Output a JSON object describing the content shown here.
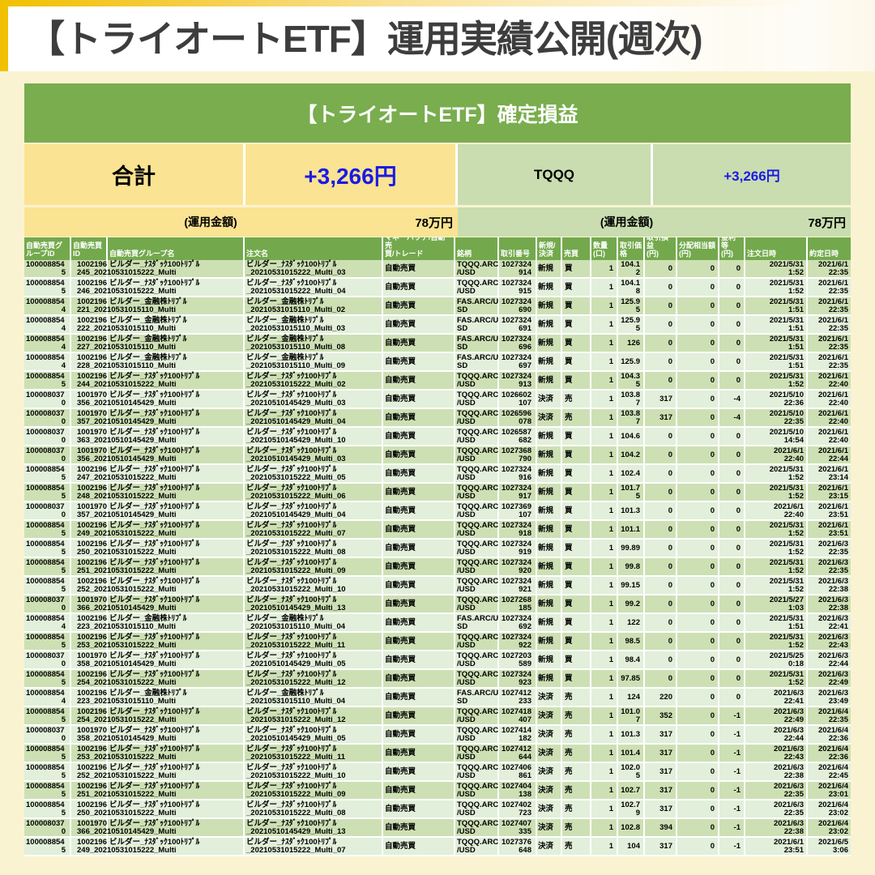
{
  "title": "【トライオートETF】運用実績公開(週次)",
  "panel": {
    "heading": "【トライオートETF】確定損益",
    "summary": {
      "total_label": "合計",
      "total_value": "+3,266円",
      "symbol": "TQQQ",
      "symbol_value": "+3,266円"
    },
    "funds": {
      "label_left": "(運用金額)",
      "value_left": "78万円",
      "label_right": "(運用金額)",
      "value_right": "78万円"
    }
  },
  "colors": {
    "page_cream": "#faf3d2",
    "gold": "#f2c002",
    "title_text": "#3d3d3d",
    "heading_green": "#79ad4e",
    "header_green": "#73a94c",
    "row_dark": "#cde0b4",
    "row_light": "#e2efda",
    "summary_yellow": "#fae392",
    "summary_green": "#c9ddb0",
    "profit_blue": "#1a1ae6"
  },
  "table": {
    "headers": [
      "自動売買グ\nループID",
      "自動売買\nID",
      "自動売買グループ名",
      "注文名",
      "マネーハッチ/自動売\n買/トレード",
      "銘柄",
      "取引番号",
      "新規/\n決済",
      "売買",
      "数量\n(口)",
      "取引価\n格",
      "取引損益\n(円)",
      "分配相当額\n(円)",
      "金利等\n(円)",
      "注文日時",
      "約定日時"
    ],
    "rows": [
      [
        "100008854",
        "5",
        "1002196",
        "245_20210531015222_Multi",
        "ビルダー_ﾅｽﾀﾞｯｸ100ﾄﾘﾌﾟﾙ",
        "ビルダー_ﾅｽﾀﾞｯｸ100ﾄﾘﾌﾟﾙ",
        "_20210531015222_Multi_03",
        "自動売買",
        "TQQQ.ARC",
        "/USD",
        "1027324",
        "914",
        "新規",
        "買",
        "1",
        "104.1",
        "2",
        "0",
        "0",
        "0",
        "2021/5/31",
        "1:52",
        "2021/6/1",
        "22:35"
      ],
      [
        "100008854",
        "5",
        "1002196",
        "246_20210531015222_Multi",
        "ビルダー_ﾅｽﾀﾞｯｸ100ﾄﾘﾌﾟﾙ",
        "ビルダー_ﾅｽﾀﾞｯｸ100ﾄﾘﾌﾟﾙ",
        "_20210531015222_Multi_04",
        "自動売買",
        "TQQQ.ARC",
        "/USD",
        "1027324",
        "915",
        "新規",
        "買",
        "1",
        "104.1",
        "8",
        "0",
        "0",
        "0",
        "2021/5/31",
        "1:52",
        "2021/6/1",
        "22:35"
      ],
      [
        "100008854",
        "4",
        "1002196",
        "221_20210531015110_Multi",
        "ビルダー_金融株ﾄﾘﾌﾟﾙ",
        "ビルダー_金融株ﾄﾘﾌﾟﾙ",
        "_20210531015110_Multi_02",
        "自動売買",
        "FAS.ARC/U",
        "SD",
        "1027324",
        "690",
        "新規",
        "買",
        "1",
        "125.9",
        "5",
        "0",
        "0",
        "0",
        "2021/5/31",
        "1:51",
        "2021/6/1",
        "22:35"
      ],
      [
        "100008854",
        "4",
        "1002196",
        "222_20210531015110_Multi",
        "ビルダー_金融株ﾄﾘﾌﾟﾙ",
        "ビルダー_金融株ﾄﾘﾌﾟﾙ",
        "_20210531015110_Multi_03",
        "自動売買",
        "FAS.ARC/U",
        "SD",
        "1027324",
        "691",
        "新規",
        "買",
        "1",
        "125.9",
        "5",
        "0",
        "0",
        "0",
        "2021/5/31",
        "1:51",
        "2021/6/1",
        "22:35"
      ],
      [
        "100008854",
        "4",
        "1002196",
        "227_20210531015110_Multi",
        "ビルダー_金融株ﾄﾘﾌﾟﾙ",
        "ビルダー_金融株ﾄﾘﾌﾟﾙ",
        "_20210531015110_Multi_08",
        "自動売買",
        "FAS.ARC/U",
        "SD",
        "1027324",
        "696",
        "新規",
        "買",
        "1",
        "126",
        "",
        "0",
        "0",
        "0",
        "2021/5/31",
        "1:51",
        "2021/6/1",
        "22:35"
      ],
      [
        "100008854",
        "4",
        "1002196",
        "228_20210531015110_Multi",
        "ビルダー_金融株ﾄﾘﾌﾟﾙ",
        "ビルダー_金融株ﾄﾘﾌﾟﾙ",
        "_20210531015110_Multi_09",
        "自動売買",
        "FAS.ARC/U",
        "SD",
        "1027324",
        "697",
        "新規",
        "買",
        "1",
        "125.9",
        "",
        "0",
        "0",
        "0",
        "2021/5/31",
        "1:51",
        "2021/6/1",
        "22:35"
      ],
      [
        "100008854",
        "5",
        "1002196",
        "244_20210531015222_Multi",
        "ビルダー_ﾅｽﾀﾞｯｸ100ﾄﾘﾌﾟﾙ",
        "ビルダー_ﾅｽﾀﾞｯｸ100ﾄﾘﾌﾟﾙ",
        "_20210531015222_Multi_02",
        "自動売買",
        "TQQQ.ARC",
        "/USD",
        "1027324",
        "913",
        "新規",
        "買",
        "1",
        "104.3",
        "5",
        "0",
        "0",
        "0",
        "2021/5/31",
        "1:52",
        "2021/6/1",
        "22:40"
      ],
      [
        "100008037",
        "0",
        "1001970",
        "356_20210510145429_Multi",
        "ビルダー_ﾅｽﾀﾞｯｸ100ﾄﾘﾌﾟﾙ",
        "ビルダー_ﾅｽﾀﾞｯｸ100ﾄﾘﾌﾟﾙ",
        "_20210510145429_Multi_03",
        "自動売買",
        "TQQQ.ARC",
        "/USD",
        "1026602",
        "107",
        "決済",
        "売",
        "1",
        "103.8",
        "7",
        "317",
        "0",
        "-4",
        "2021/5/10",
        "22:36",
        "2021/6/1",
        "22:40"
      ],
      [
        "100008037",
        "0",
        "1001970",
        "357_20210510145429_Multi",
        "ビルダー_ﾅｽﾀﾞｯｸ100ﾄﾘﾌﾟﾙ",
        "ビルダー_ﾅｽﾀﾞｯｸ100ﾄﾘﾌﾟﾙ",
        "_20210510145429_Multi_04",
        "自動売買",
        "TQQQ.ARC",
        "/USD",
        "1026596",
        "078",
        "決済",
        "売",
        "1",
        "103.8",
        "7",
        "317",
        "0",
        "-4",
        "2021/5/10",
        "22:35",
        "2021/6/1",
        "22:40"
      ],
      [
        "100008037",
        "0",
        "1001970",
        "363_20210510145429_Multi",
        "ビルダー_ﾅｽﾀﾞｯｸ100ﾄﾘﾌﾟﾙ",
        "ビルダー_ﾅｽﾀﾞｯｸ100ﾄﾘﾌﾟﾙ",
        "_20210510145429_Multi_10",
        "自動売買",
        "TQQQ.ARC",
        "/USD",
        "1026587",
        "682",
        "新規",
        "買",
        "1",
        "104.6",
        "",
        "0",
        "0",
        "0",
        "2021/5/10",
        "14:54",
        "2021/6/1",
        "22:40"
      ],
      [
        "100008037",
        "0",
        "1001970",
        "356_20210510145429_Multi",
        "ビルダー_ﾅｽﾀﾞｯｸ100ﾄﾘﾌﾟﾙ",
        "ビルダー_ﾅｽﾀﾞｯｸ100ﾄﾘﾌﾟﾙ",
        "_20210510145429_Multi_03",
        "自動売買",
        "TQQQ.ARC",
        "/USD",
        "1027368",
        "790",
        "新規",
        "買",
        "1",
        "104.2",
        "",
        "0",
        "0",
        "0",
        "2021/6/1",
        "22:40",
        "2021/6/1",
        "22:44"
      ],
      [
        "100008854",
        "5",
        "1002196",
        "247_20210531015222_Multi",
        "ビルダー_ﾅｽﾀﾞｯｸ100ﾄﾘﾌﾟﾙ",
        "ビルダー_ﾅｽﾀﾞｯｸ100ﾄﾘﾌﾟﾙ",
        "_20210531015222_Multi_05",
        "自動売買",
        "TQQQ.ARC",
        "/USD",
        "1027324",
        "916",
        "新規",
        "買",
        "1",
        "102.4",
        "",
        "0",
        "0",
        "0",
        "2021/5/31",
        "1:52",
        "2021/6/1",
        "23:14"
      ],
      [
        "100008854",
        "5",
        "1002196",
        "248_20210531015222_Multi",
        "ビルダー_ﾅｽﾀﾞｯｸ100ﾄﾘﾌﾟﾙ",
        "ビルダー_ﾅｽﾀﾞｯｸ100ﾄﾘﾌﾟﾙ",
        "_20210531015222_Multi_06",
        "自動売買",
        "TQQQ.ARC",
        "/USD",
        "1027324",
        "917",
        "新規",
        "買",
        "1",
        "101.7",
        "5",
        "0",
        "0",
        "0",
        "2021/5/31",
        "1:52",
        "2021/6/1",
        "23:15"
      ],
      [
        "100008037",
        "0",
        "1001970",
        "357_20210510145429_Multi",
        "ビルダー_ﾅｽﾀﾞｯｸ100ﾄﾘﾌﾟﾙ",
        "ビルダー_ﾅｽﾀﾞｯｸ100ﾄﾘﾌﾟﾙ",
        "_20210510145429_Multi_04",
        "自動売買",
        "TQQQ.ARC",
        "/USD",
        "1027369",
        "107",
        "新規",
        "買",
        "1",
        "101.3",
        "",
        "0",
        "0",
        "0",
        "2021/6/1",
        "22:40",
        "2021/6/1",
        "23:51"
      ],
      [
        "100008854",
        "5",
        "1002196",
        "249_20210531015222_Multi",
        "ビルダー_ﾅｽﾀﾞｯｸ100ﾄﾘﾌﾟﾙ",
        "ビルダー_ﾅｽﾀﾞｯｸ100ﾄﾘﾌﾟﾙ",
        "_20210531015222_Multi_07",
        "自動売買",
        "TQQQ.ARC",
        "/USD",
        "1027324",
        "918",
        "新規",
        "買",
        "1",
        "101.1",
        "",
        "0",
        "0",
        "0",
        "2021/5/31",
        "1:52",
        "2021/6/1",
        "23:51"
      ],
      [
        "100008854",
        "5",
        "1002196",
        "250_20210531015222_Multi",
        "ビルダー_ﾅｽﾀﾞｯｸ100ﾄﾘﾌﾟﾙ",
        "ビルダー_ﾅｽﾀﾞｯｸ100ﾄﾘﾌﾟﾙ",
        "_20210531015222_Multi_08",
        "自動売買",
        "TQQQ.ARC",
        "/USD",
        "1027324",
        "919",
        "新規",
        "買",
        "1",
        "99.89",
        "",
        "0",
        "0",
        "0",
        "2021/5/31",
        "1:52",
        "2021/6/3",
        "22:35"
      ],
      [
        "100008854",
        "5",
        "1002196",
        "251_20210531015222_Multi",
        "ビルダー_ﾅｽﾀﾞｯｸ100ﾄﾘﾌﾟﾙ",
        "ビルダー_ﾅｽﾀﾞｯｸ100ﾄﾘﾌﾟﾙ",
        "_20210531015222_Multi_09",
        "自動売買",
        "TQQQ.ARC",
        "/USD",
        "1027324",
        "920",
        "新規",
        "買",
        "1",
        "99.8",
        "",
        "0",
        "0",
        "0",
        "2021/5/31",
        "1:52",
        "2021/6/3",
        "22:35"
      ],
      [
        "100008854",
        "5",
        "1002196",
        "252_20210531015222_Multi",
        "ビルダー_ﾅｽﾀﾞｯｸ100ﾄﾘﾌﾟﾙ",
        "ビルダー_ﾅｽﾀﾞｯｸ100ﾄﾘﾌﾟﾙ",
        "_20210531015222_Multi_10",
        "自動売買",
        "TQQQ.ARC",
        "/USD",
        "1027324",
        "921",
        "新規",
        "買",
        "1",
        "99.15",
        "",
        "0",
        "0",
        "0",
        "2021/5/31",
        "1:52",
        "2021/6/3",
        "22:38"
      ],
      [
        "100008037",
        "0",
        "1001970",
        "366_20210510145429_Multi",
        "ビルダー_ﾅｽﾀﾞｯｸ100ﾄﾘﾌﾟﾙ",
        "ビルダー_ﾅｽﾀﾞｯｸ100ﾄﾘﾌﾟﾙ",
        "_20210510145429_Multi_13",
        "自動売買",
        "TQQQ.ARC",
        "/USD",
        "1027268",
        "185",
        "新規",
        "買",
        "1",
        "99.2",
        "",
        "0",
        "0",
        "0",
        "2021/5/27",
        "1:03",
        "2021/6/3",
        "22:38"
      ],
      [
        "100008854",
        "4",
        "1002196",
        "223_20210531015110_Multi",
        "ビルダー_金融株ﾄﾘﾌﾟﾙ",
        "ビルダー_金融株ﾄﾘﾌﾟﾙ",
        "_20210531015110_Multi_04",
        "自動売買",
        "FAS.ARC/U",
        "SD",
        "1027324",
        "692",
        "新規",
        "買",
        "1",
        "122",
        "",
        "0",
        "0",
        "0",
        "2021/5/31",
        "1:51",
        "2021/6/3",
        "22:41"
      ],
      [
        "100008854",
        "5",
        "1002196",
        "253_20210531015222_Multi",
        "ビルダー_ﾅｽﾀﾞｯｸ100ﾄﾘﾌﾟﾙ",
        "ビルダー_ﾅｽﾀﾞｯｸ100ﾄﾘﾌﾟﾙ",
        "_20210531015222_Multi_11",
        "自動売買",
        "TQQQ.ARC",
        "/USD",
        "1027324",
        "922",
        "新規",
        "買",
        "1",
        "98.5",
        "",
        "0",
        "0",
        "0",
        "2021/5/31",
        "1:52",
        "2021/6/3",
        "22:43"
      ],
      [
        "100008037",
        "0",
        "1001970",
        "358_20210510145429_Multi",
        "ビルダー_ﾅｽﾀﾞｯｸ100ﾄﾘﾌﾟﾙ",
        "ビルダー_ﾅｽﾀﾞｯｸ100ﾄﾘﾌﾟﾙ",
        "_20210510145429_Multi_05",
        "自動売買",
        "TQQQ.ARC",
        "/USD",
        "1027203",
        "589",
        "新規",
        "買",
        "1",
        "98.4",
        "",
        "0",
        "0",
        "0",
        "2021/5/25",
        "0:18",
        "2021/6/3",
        "22:44"
      ],
      [
        "100008854",
        "5",
        "1002196",
        "254_20210531015222_Multi",
        "ビルダー_ﾅｽﾀﾞｯｸ100ﾄﾘﾌﾟﾙ",
        "ビルダー_ﾅｽﾀﾞｯｸ100ﾄﾘﾌﾟﾙ",
        "_20210531015222_Multi_12",
        "自動売買",
        "TQQQ.ARC",
        "/USD",
        "1027324",
        "923",
        "新規",
        "買",
        "1",
        "97.85",
        "",
        "0",
        "0",
        "0",
        "2021/5/31",
        "1:52",
        "2021/6/3",
        "22:49"
      ],
      [
        "100008854",
        "4",
        "1002196",
        "223_20210531015110_Multi",
        "ビルダー_金融株ﾄﾘﾌﾟﾙ",
        "ビルダー_金融株ﾄﾘﾌﾟﾙ",
        "_20210531015110_Multi_04",
        "自動売買",
        "FAS.ARC/U",
        "SD",
        "1027412",
        "233",
        "決済",
        "売",
        "1",
        "124",
        "",
        "220",
        "0",
        "0",
        "2021/6/3",
        "22:41",
        "2021/6/3",
        "23:49"
      ],
      [
        "100008854",
        "5",
        "1002196",
        "254_20210531015222_Multi",
        "ビルダー_ﾅｽﾀﾞｯｸ100ﾄﾘﾌﾟﾙ",
        "ビルダー_ﾅｽﾀﾞｯｸ100ﾄﾘﾌﾟﾙ",
        "_20210531015222_Multi_12",
        "自動売買",
        "TQQQ.ARC",
        "/USD",
        "1027418",
        "407",
        "決済",
        "売",
        "1",
        "101.0",
        "7",
        "352",
        "0",
        "-1",
        "2021/6/3",
        "22:49",
        "2021/6/4",
        "22:35"
      ],
      [
        "100008037",
        "0",
        "1001970",
        "358_20210510145429_Multi",
        "ビルダー_ﾅｽﾀﾞｯｸ100ﾄﾘﾌﾟﾙ",
        "ビルダー_ﾅｽﾀﾞｯｸ100ﾄﾘﾌﾟﾙ",
        "_20210510145429_Multi_05",
        "自動売買",
        "TQQQ.ARC",
        "/USD",
        "1027414",
        "182",
        "決済",
        "売",
        "1",
        "101.3",
        "",
        "317",
        "0",
        "-1",
        "2021/6/3",
        "22:44",
        "2021/6/4",
        "22:36"
      ],
      [
        "100008854",
        "5",
        "1002196",
        "253_20210531015222_Multi",
        "ビルダー_ﾅｽﾀﾞｯｸ100ﾄﾘﾌﾟﾙ",
        "ビルダー_ﾅｽﾀﾞｯｸ100ﾄﾘﾌﾟﾙ",
        "_20210531015222_Multi_11",
        "自動売買",
        "TQQQ.ARC",
        "/USD",
        "1027412",
        "644",
        "決済",
        "売",
        "1",
        "101.4",
        "",
        "317",
        "0",
        "-1",
        "2021/6/3",
        "22:43",
        "2021/6/4",
        "22:36"
      ],
      [
        "100008854",
        "5",
        "1002196",
        "252_20210531015222_Multi",
        "ビルダー_ﾅｽﾀﾞｯｸ100ﾄﾘﾌﾟﾙ",
        "ビルダー_ﾅｽﾀﾞｯｸ100ﾄﾘﾌﾟﾙ",
        "_20210531015222_Multi_10",
        "自動売買",
        "TQQQ.ARC",
        "/USD",
        "1027406",
        "861",
        "決済",
        "売",
        "1",
        "102.0",
        "5",
        "317",
        "0",
        "-1",
        "2021/6/3",
        "22:38",
        "2021/6/4",
        "22:45"
      ],
      [
        "100008854",
        "5",
        "1002196",
        "251_20210531015222_Multi",
        "ビルダー_ﾅｽﾀﾞｯｸ100ﾄﾘﾌﾟﾙ",
        "ビルダー_ﾅｽﾀﾞｯｸ100ﾄﾘﾌﾟﾙ",
        "_20210531015222_Multi_09",
        "自動売買",
        "TQQQ.ARC",
        "/USD",
        "1027404",
        "138",
        "決済",
        "売",
        "1",
        "102.7",
        "",
        "317",
        "0",
        "-1",
        "2021/6/3",
        "22:35",
        "2021/6/4",
        "23:01"
      ],
      [
        "100008854",
        "5",
        "1002196",
        "250_20210531015222_Multi",
        "ビルダー_ﾅｽﾀﾞｯｸ100ﾄﾘﾌﾟﾙ",
        "ビルダー_ﾅｽﾀﾞｯｸ100ﾄﾘﾌﾟﾙ",
        "_20210531015222_Multi_08",
        "自動売買",
        "TQQQ.ARC",
        "/USD",
        "1027402",
        "723",
        "決済",
        "売",
        "1",
        "102.7",
        "9",
        "317",
        "0",
        "-1",
        "2021/6/3",
        "22:35",
        "2021/6/4",
        "23:02"
      ],
      [
        "100008037",
        "0",
        "1001970",
        "366_20210510145429_Multi",
        "ビルダー_ﾅｽﾀﾞｯｸ100ﾄﾘﾌﾟﾙ",
        "ビルダー_ﾅｽﾀﾞｯｸ100ﾄﾘﾌﾟﾙ",
        "_20210510145429_Multi_13",
        "自動売買",
        "TQQQ.ARC",
        "/USD",
        "1027407",
        "335",
        "決済",
        "売",
        "1",
        "102.8",
        "",
        "394",
        "0",
        "-1",
        "2021/6/3",
        "22:38",
        "2021/6/4",
        "23:02"
      ],
      [
        "100008854",
        "5",
        "1002196",
        "249_20210531015222_Multi",
        "ビルダー_ﾅｽﾀﾞｯｸ100ﾄﾘﾌﾟﾙ",
        "ビルダー_ﾅｽﾀﾞｯｸ100ﾄﾘﾌﾟﾙ",
        "_20210531015222_Multi_07",
        "自動売買",
        "TQQQ.ARC",
        "/USD",
        "1027376",
        "648",
        "決済",
        "売",
        "1",
        "104",
        "",
        "317",
        "0",
        "-1",
        "2021/6/1",
        "23:51",
        "2021/6/5",
        "3:06"
      ]
    ]
  }
}
